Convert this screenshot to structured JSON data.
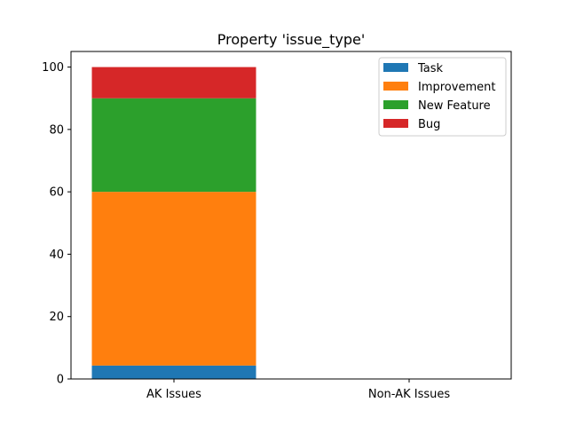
{
  "chart_data": {
    "type": "bar",
    "stacked": true,
    "title": "Property 'issue_type'",
    "xlabel": "",
    "ylabel": "",
    "categories": [
      "AK Issues",
      "Non-AK Issues"
    ],
    "ylim": [
      0,
      105
    ],
    "yticks": [
      0,
      20,
      40,
      60,
      80,
      100
    ],
    "grid": false,
    "legend_position": "top-right",
    "series": [
      {
        "name": "Task",
        "color": "#1f77b4",
        "values": [
          4.3,
          0
        ]
      },
      {
        "name": "Improvement",
        "color": "#ff7f0e",
        "values": [
          55.7,
          0
        ]
      },
      {
        "name": "New Feature",
        "color": "#2ca02c",
        "values": [
          30.0,
          0
        ]
      },
      {
        "name": "Bug",
        "color": "#d62728",
        "values": [
          10.0,
          0
        ]
      }
    ]
  }
}
